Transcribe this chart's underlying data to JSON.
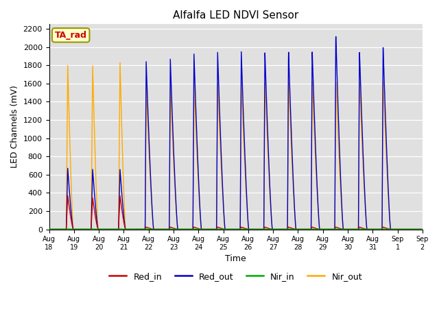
{
  "title": "Alfalfa LED NDVI Sensor",
  "xlabel": "Time",
  "ylabel": "LED Channels (mV)",
  "annotation": "TA_rad",
  "annotation_color": "#cc0000",
  "annotation_bg": "#ffffcc",
  "annotation_border": "#999900",
  "ylim": [
    0,
    2250
  ],
  "yticks": [
    0,
    200,
    400,
    600,
    800,
    1000,
    1200,
    1400,
    1600,
    1800,
    2000,
    2200
  ],
  "bg_color": "#e0e0e0",
  "series_colors": {
    "Red_in": "#cc0000",
    "Red_out": "#0000cc",
    "Nir_in": "#00aa00",
    "Nir_out": "#ffaa00"
  },
  "xtick_labels": [
    "Aug 18",
    "Aug 19",
    "Aug 20",
    "Aug 21",
    "Aug 22",
    "Aug 23",
    "Aug 24",
    "Aug 25",
    "Aug 26",
    "Aug 27",
    "Aug 28",
    "Aug 29",
    "Aug 30",
    "Aug 31",
    "Sep 1",
    "Sep 2"
  ],
  "spike_events": [
    {
      "day": 0.75,
      "red_in": 370,
      "red_out": 670,
      "nir_in": 5,
      "nir_out": 1800,
      "rise": 0.06,
      "fall": 0.22
    },
    {
      "day": 1.75,
      "red_in": 345,
      "red_out": 660,
      "nir_in": 5,
      "nir_out": 1800,
      "rise": 0.06,
      "fall": 0.22
    },
    {
      "day": 2.85,
      "red_in": 370,
      "red_out": 660,
      "nir_in": 5,
      "nir_out": 1840,
      "rise": 0.06,
      "fall": 0.22
    },
    {
      "day": 3.9,
      "red_in": 25,
      "red_out": 1850,
      "nir_in": 3,
      "nir_out": 1560,
      "rise": 0.04,
      "fall": 0.3
    },
    {
      "day": 4.87,
      "red_in": 25,
      "red_out": 1880,
      "nir_in": 3,
      "nir_out": 1580,
      "rise": 0.04,
      "fall": 0.3
    },
    {
      "day": 5.82,
      "red_in": 25,
      "red_out": 1940,
      "nir_in": 3,
      "nir_out": 1600,
      "rise": 0.04,
      "fall": 0.3
    },
    {
      "day": 6.77,
      "red_in": 25,
      "red_out": 1960,
      "nir_in": 3,
      "nir_out": 1615,
      "rise": 0.04,
      "fall": 0.3
    },
    {
      "day": 7.72,
      "red_in": 25,
      "red_out": 1970,
      "nir_in": 3,
      "nir_out": 1620,
      "rise": 0.04,
      "fall": 0.3
    },
    {
      "day": 8.67,
      "red_in": 25,
      "red_out": 1960,
      "nir_in": 3,
      "nir_out": 1630,
      "rise": 0.04,
      "fall": 0.3
    },
    {
      "day": 9.62,
      "red_in": 25,
      "red_out": 1970,
      "nir_in": 3,
      "nir_out": 1635,
      "rise": 0.04,
      "fall": 0.3
    },
    {
      "day": 10.57,
      "red_in": 25,
      "red_out": 1975,
      "nir_in": 3,
      "nir_out": 1640,
      "rise": 0.04,
      "fall": 0.3
    },
    {
      "day": 11.52,
      "red_in": 25,
      "red_out": 2150,
      "nir_in": 3,
      "nir_out": 1640,
      "rise": 0.04,
      "fall": 0.3
    },
    {
      "day": 12.47,
      "red_in": 25,
      "red_out": 1975,
      "nir_in": 3,
      "nir_out": 1640,
      "rise": 0.04,
      "fall": 0.3
    },
    {
      "day": 13.42,
      "red_in": 25,
      "red_out": 2020,
      "nir_in": 3,
      "nir_out": 1650,
      "rise": 0.04,
      "fall": 0.3
    }
  ]
}
